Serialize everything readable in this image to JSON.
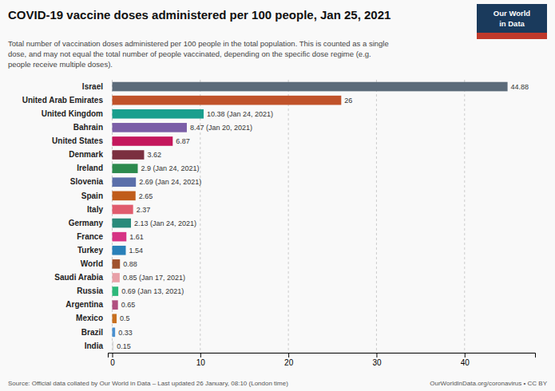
{
  "chart_data": {
    "type": "bar",
    "orientation": "horizontal",
    "title": "COVID-19 vaccine doses administered per 100 people, Jan 25, 2021",
    "subtitle": "Total number of vaccination doses administered per 100 people in the total population. This is counted as a single\ndose, and may not equal the total number of people vaccinated, depending on the specific dose regime (e.g.\npeople receive multiple doses).",
    "categories": [
      "Israel",
      "United Arab Emirates",
      "United Kingdom",
      "Bahrain",
      "United States",
      "Denmark",
      "Ireland",
      "Slovenia",
      "Spain",
      "Italy",
      "Germany",
      "France",
      "Turkey",
      "World",
      "Saudi Arabia",
      "Russia",
      "Argentina",
      "Mexico",
      "Brazil",
      "India"
    ],
    "values": [
      44.88,
      26,
      10.38,
      8.47,
      6.87,
      3.62,
      2.9,
      2.69,
      2.65,
      2.37,
      2.13,
      1.61,
      1.54,
      0.88,
      0.85,
      0.69,
      0.65,
      0.5,
      0.33,
      0.15
    ],
    "value_labels": [
      "44.88",
      "26",
      "10.38 (Jan 24, 2021)",
      "8.47 (Jan 20, 2021)",
      "6.87",
      "3.62",
      "2.9 (Jan 24, 2021)",
      "2.69 (Jan 24, 2021)",
      "2.65",
      "2.37",
      "2.13 (Jan 24, 2021)",
      "1.61",
      "1.54",
      "0.88",
      "0.85 (Jan 17, 2021)",
      "0.69 (Jan 13, 2021)",
      "0.65",
      "0.5",
      "0.33",
      "0.15"
    ],
    "colors": [
      "#5c6b7a",
      "#c0522a",
      "#1a9f8e",
      "#7b5ea7",
      "#c4175c",
      "#7b3040",
      "#2d8a4e",
      "#5b6faa",
      "#c05c1a",
      "#e05c6e",
      "#2a8a7a",
      "#d63384",
      "#2980b9",
      "#a0522d",
      "#e8a0a8",
      "#2db87a",
      "#b05080",
      "#c87020",
      "#4a90d0",
      "#d8d8d8"
    ],
    "xlim": [
      -0.5,
      48
    ],
    "xticks": [
      0,
      10,
      20,
      30,
      40
    ],
    "grid": true,
    "data_labels": true,
    "annotations": [
      "Our World",
      "in Data",
      "Source: Official data collated by Our World in Data – Last updated 26 January, 08:10 (London time)",
      "OurWorldInData.org/coronavirus • CC BY"
    ]
  }
}
